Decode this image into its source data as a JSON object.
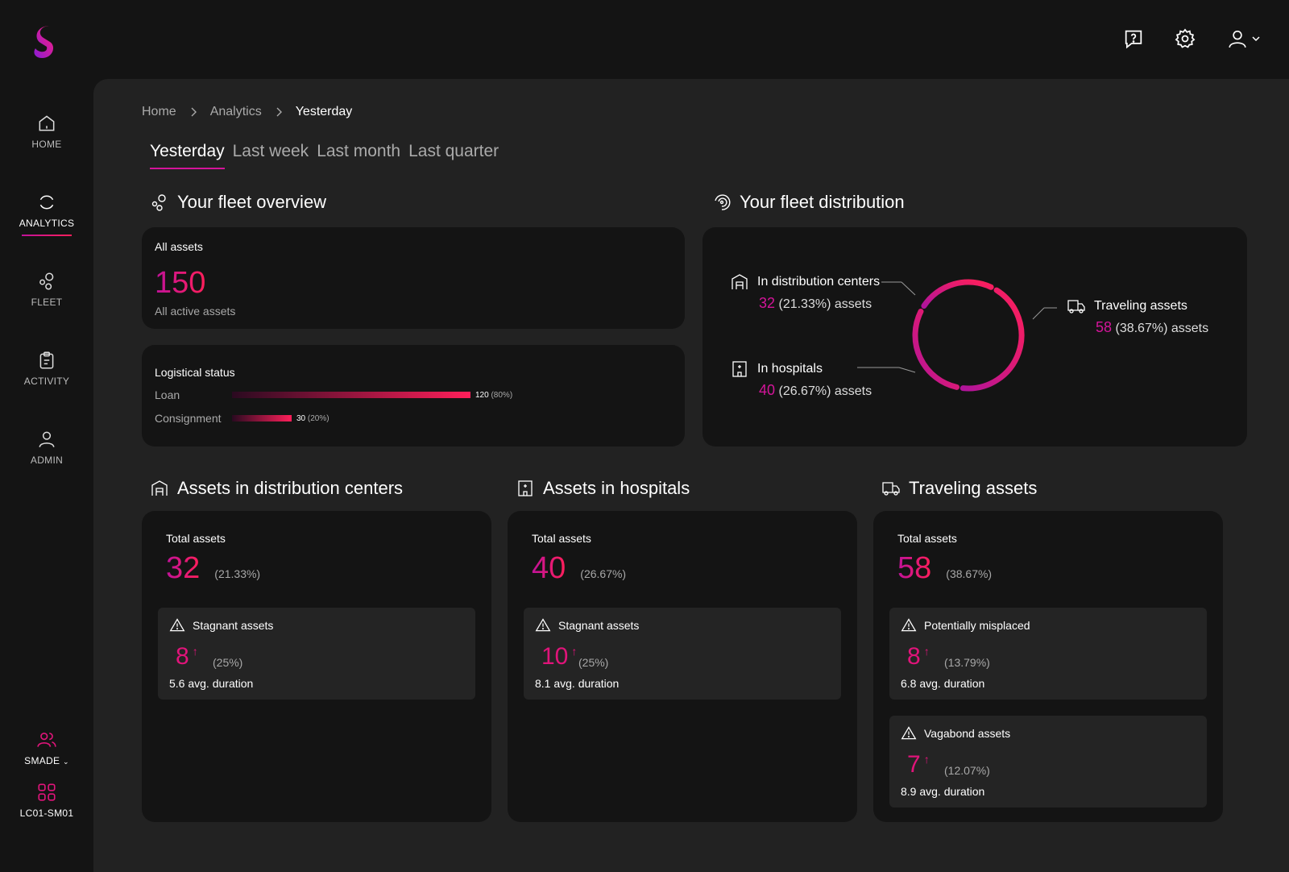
{
  "app": {
    "brand_color": "#e0147a",
    "accent_gradient": [
      "#c0129a",
      "#ff1f5a"
    ]
  },
  "sidebar": {
    "items": [
      {
        "label": "HOME",
        "icon": "home-icon"
      },
      {
        "label": "ANALYTICS",
        "icon": "analytics-icon"
      },
      {
        "label": "FLEET",
        "icon": "fleet-icon"
      },
      {
        "label": "ACTIVITY",
        "icon": "activity-icon"
      },
      {
        "label": "ADMIN",
        "icon": "admin-icon"
      }
    ],
    "active": "ANALYTICS",
    "org": {
      "label": "SMADE",
      "icon": "users-icon"
    },
    "device": {
      "label": "LC01-SM01",
      "icon": "grid-icon"
    }
  },
  "topbar": {
    "icons": [
      "help-icon",
      "settings-icon",
      "user-icon"
    ]
  },
  "breadcrumb": [
    "Home",
    "Analytics",
    "Yesterday"
  ],
  "tabs": [
    "Yesterday",
    "Last week",
    "Last month",
    "Last quarter"
  ],
  "fleet_overview": {
    "title": "Your fleet overview",
    "all_assets": {
      "label": "All assets",
      "value": "150",
      "sub": "All active assets"
    },
    "logistical": {
      "label": "Logistical status",
      "rows": [
        {
          "name": "Loan",
          "value": "120",
          "pct": "(80%)",
          "fraction": 0.8
        },
        {
          "name": "Consignment",
          "value": "30",
          "pct": "(20%)",
          "fraction": 0.2
        }
      ]
    }
  },
  "fleet_distribution": {
    "title": "Your fleet distribution",
    "items": [
      {
        "label": "In distribution centers",
        "value": "32",
        "detail": "(21.33%) assets"
      },
      {
        "label": "In hospitals",
        "value": "40",
        "detail": "(26.67%) assets"
      },
      {
        "label": "Traveling assets",
        "value": "58",
        "detail": "(38.67%) assets"
      }
    ]
  },
  "sections": [
    {
      "title": "Assets in distribution centers",
      "total_label": "Total assets",
      "total": "32",
      "total_pct": "(21.33%)",
      "alerts": [
        {
          "label": "Stagnant assets",
          "value": "8",
          "arrow": "↑",
          "pct": "(25%)",
          "duration": "5.6 avg. duration"
        }
      ]
    },
    {
      "title": "Assets in hospitals",
      "total_label": "Total assets",
      "total": "40",
      "total_pct": "(26.67%)",
      "alerts": [
        {
          "label": "Stagnant assets",
          "value": "10",
          "arrow": "↑",
          "pct": "(25%)",
          "duration": "8.1 avg. duration"
        }
      ]
    },
    {
      "title": "Traveling assets",
      "total_label": "Total assets",
      "total": "58",
      "total_pct": "(38.67%)",
      "alerts": [
        {
          "label": "Potentially misplaced",
          "value": "8",
          "arrow": "↑",
          "pct": "(13.79%)",
          "duration": "6.8 avg. duration"
        },
        {
          "label": "Vagabond assets",
          "value": "7",
          "arrow": "↑",
          "pct": "(12.07%)",
          "duration": "8.9 avg. duration"
        }
      ]
    }
  ]
}
